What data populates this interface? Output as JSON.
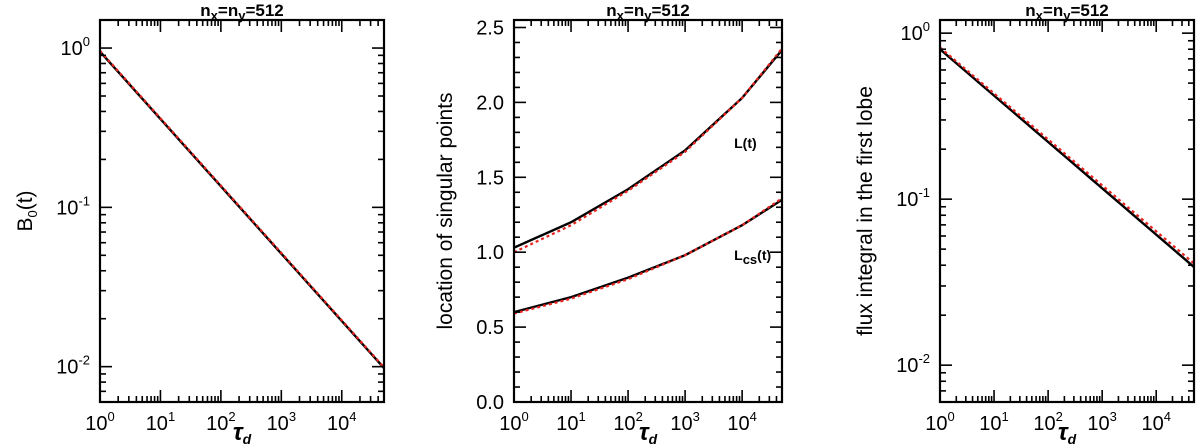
{
  "chart_data": [
    {
      "type": "line",
      "title": "n_x=n_y=512",
      "xlabel": "τ_d",
      "ylabel": "B_0(t)",
      "xscale": "log",
      "yscale": "log",
      "xlim": [
        1,
        50000
      ],
      "ylim": [
        0.006,
        1.5
      ],
      "x_ticks": [
        1,
        10,
        100,
        1000,
        10000
      ],
      "x_tick_labels": [
        [
          "10",
          "0"
        ],
        [
          "10",
          "1"
        ],
        [
          "10",
          "2"
        ],
        [
          "10",
          "3"
        ],
        [
          "10",
          "4"
        ]
      ],
      "y_ticks": [
        0.01,
        0.1,
        1
      ],
      "y_tick_labels": [
        [
          "10",
          "-2"
        ],
        [
          "10",
          "-1"
        ],
        [
          "10",
          "0"
        ]
      ],
      "series": [
        {
          "color": "#000000",
          "style": "solid",
          "x": [
            1,
            50000
          ],
          "y": [
            0.95,
            0.0098
          ]
        },
        {
          "color": "#e8231f",
          "style": "dotted",
          "x": [
            1,
            50000
          ],
          "y": [
            0.96,
            0.0099
          ]
        }
      ],
      "annotations": []
    },
    {
      "type": "line",
      "title": "n_x=n_y=512",
      "xlabel": "τ_d",
      "ylabel": "location of singular points",
      "xscale": "log",
      "yscale": "linear",
      "xlim": [
        1,
        50000
      ],
      "ylim": [
        0,
        2.55
      ],
      "x_ticks": [
        1,
        10,
        100,
        1000,
        10000
      ],
      "x_tick_labels": [
        [
          "10",
          "0"
        ],
        [
          "10",
          "1"
        ],
        [
          "10",
          "2"
        ],
        [
          "10",
          "3"
        ],
        [
          "10",
          "4"
        ]
      ],
      "y_ticks": [
        0,
        0.5,
        1,
        1.5,
        2,
        2.5
      ],
      "y_tick_labels": [
        [
          "0.0",
          ""
        ],
        [
          "0.5",
          ""
        ],
        [
          "1.0",
          ""
        ],
        [
          "1.5",
          ""
        ],
        [
          "2.0",
          ""
        ],
        [
          "2.5",
          ""
        ]
      ],
      "series": [
        {
          "color": "#000000",
          "style": "solid",
          "x": [
            1,
            10,
            100,
            1000,
            10000,
            50000
          ],
          "y": [
            1.03,
            1.2,
            1.42,
            1.68,
            2.03,
            2.35
          ]
        },
        {
          "color": "#e8231f",
          "style": "dotted",
          "x": [
            1,
            10,
            100,
            1000,
            10000,
            50000
          ],
          "y": [
            1.0,
            1.18,
            1.41,
            1.67,
            2.03,
            2.36
          ]
        },
        {
          "color": "#000000",
          "style": "solid",
          "x": [
            1,
            10,
            100,
            1000,
            10000,
            50000
          ],
          "y": [
            0.6,
            0.7,
            0.83,
            0.98,
            1.18,
            1.35
          ]
        },
        {
          "color": "#e8231f",
          "style": "dotted",
          "x": [
            1,
            10,
            100,
            1000,
            10000,
            50000
          ],
          "y": [
            0.59,
            0.69,
            0.82,
            0.98,
            1.18,
            1.36
          ]
        }
      ],
      "annotations": [
        {
          "text": "L(t)",
          "sub": "",
          "x": 10000,
          "y": 1.73
        },
        {
          "text": "L",
          "sub": "cs",
          "tail": "(t)",
          "x": 10000,
          "y": 0.98
        }
      ]
    },
    {
      "type": "line",
      "title": "n_x=n_y=512",
      "xlabel": "τ_d",
      "ylabel": "flux integral in the first lobe",
      "xscale": "log",
      "yscale": "log",
      "xlim": [
        1,
        50000
      ],
      "ylim": [
        0.006,
        1.2
      ],
      "x_ticks": [
        1,
        10,
        100,
        1000,
        10000
      ],
      "x_tick_labels": [
        [
          "10",
          "0"
        ],
        [
          "10",
          "1"
        ],
        [
          "10",
          "2"
        ],
        [
          "10",
          "3"
        ],
        [
          "10",
          "4"
        ]
      ],
      "y_ticks": [
        0.01,
        0.1,
        1
      ],
      "y_tick_labels": [
        [
          "10",
          "-2"
        ],
        [
          "10",
          "-1"
        ],
        [
          "10",
          "0"
        ]
      ],
      "series": [
        {
          "color": "#000000",
          "style": "solid",
          "x": [
            1,
            50000
          ],
          "y": [
            0.8,
            0.039
          ]
        },
        {
          "color": "#e8231f",
          "style": "dotted",
          "x": [
            1,
            50000
          ],
          "y": [
            0.82,
            0.041
          ]
        }
      ],
      "annotations": []
    }
  ]
}
